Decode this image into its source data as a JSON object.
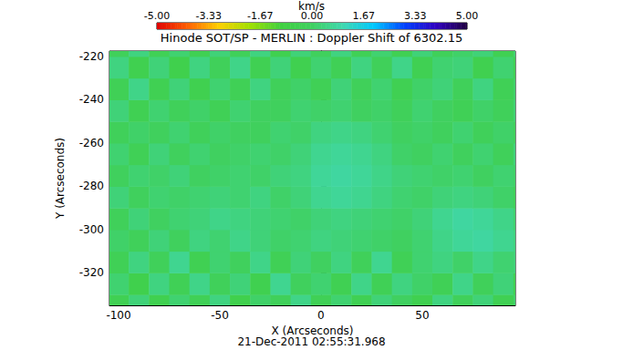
{
  "chart_data": {
    "type": "heatmap",
    "title": "Hinode SOT/SP - MERLIN : Doppler Shift of 6302.15",
    "xlabel": "X (Arcseconds)",
    "ylabel": "Y (Arcseconds)",
    "annotation": "21-Dec-2011 02:55:31.968",
    "xlim": [
      -104.5,
      96
    ],
    "ylim": [
      -335,
      -217.5
    ],
    "xticks": [
      -100,
      -50,
      0,
      50
    ],
    "yticks": [
      -320,
      -300,
      -280,
      -260,
      -240,
      -220
    ],
    "x": [
      -100,
      -90,
      -80,
      -70,
      -60,
      -50,
      -40,
      -30,
      -20,
      -10,
      0,
      10,
      20,
      30,
      40,
      50,
      60,
      70,
      80,
      90,
      100
    ],
    "y": [
      -335,
      -325,
      -315,
      -305,
      -295,
      -285,
      -275,
      -265,
      -255,
      -245,
      -235,
      -225,
      -215
    ],
    "z": [
      [
        -0.4,
        0.3,
        -0.5,
        0.2,
        -0.3,
        0.4,
        -0.6,
        0.1,
        -0.2,
        0.5,
        -0.3,
        0.2,
        -0.4,
        0.3,
        0.0,
        -0.5,
        0.4,
        -0.2,
        0.3,
        -0.4,
        0.1
      ],
      [
        0.2,
        -0.6,
        0.4,
        -0.3,
        0.5,
        -0.2,
        0.3,
        -0.5,
        0.6,
        -0.1,
        0.2,
        -0.4,
        0.5,
        -0.3,
        0.4,
        0.1,
        -0.3,
        0.5,
        -0.2,
        0.3,
        -0.4
      ],
      [
        -0.3,
        0.4,
        -0.2,
        0.6,
        -0.4,
        0.2,
        -0.1,
        0.5,
        -0.3,
        0.3,
        0.0,
        0.4,
        -0.2,
        0.6,
        -0.3,
        0.2,
        0.4,
        0.1,
        0.5,
        0.2,
        0.3
      ],
      [
        0.1,
        -0.2,
        0.3,
        -0.1,
        0.4,
        0.2,
        0.5,
        0.3,
        0.1,
        0.2,
        0.4,
        0.3,
        0.2,
        0.1,
        0.0,
        0.2,
        0.5,
        0.7,
        0.8,
        0.6,
        0.4
      ],
      [
        -0.2,
        0.3,
        0.0,
        0.2,
        0.3,
        0.5,
        0.4,
        0.3,
        0.2,
        0.1,
        0.3,
        0.4,
        0.3,
        0.2,
        0.1,
        0.3,
        0.6,
        0.8,
        0.7,
        0.5,
        0.2
      ],
      [
        0.3,
        -0.1,
        0.2,
        0.1,
        0.2,
        0.3,
        0.2,
        0.4,
        0.1,
        0.3,
        0.6,
        0.7,
        0.6,
        0.4,
        0.2,
        0.1,
        0.3,
        0.4,
        0.3,
        0.1,
        -0.2
      ],
      [
        -0.1,
        0.2,
        0.1,
        0.3,
        0.0,
        0.1,
        0.2,
        0.1,
        0.3,
        0.4,
        0.7,
        0.8,
        0.7,
        0.5,
        0.3,
        0.2,
        0.1,
        0.2,
        0.0,
        0.2,
        0.1
      ],
      [
        0.2,
        -0.3,
        0.3,
        -0.1,
        0.2,
        0.0,
        0.1,
        0.2,
        0.1,
        0.3,
        0.6,
        0.7,
        0.6,
        0.4,
        0.1,
        0.0,
        0.2,
        -0.1,
        0.2,
        -0.2,
        0.3
      ],
      [
        -0.2,
        0.1,
        -0.1,
        0.2,
        -0.2,
        0.1,
        0.0,
        -0.1,
        0.2,
        0.1,
        0.4,
        0.5,
        0.4,
        0.2,
        0.0,
        0.1,
        -0.1,
        0.2,
        -0.2,
        0.1,
        -0.1
      ],
      [
        0.3,
        -0.4,
        0.2,
        -0.2,
        0.1,
        -0.3,
        0.2,
        0.0,
        -0.1,
        0.2,
        0.1,
        0.2,
        0.0,
        0.1,
        -0.2,
        0.2,
        0.0,
        -0.3,
        0.1,
        -0.2,
        0.2
      ],
      [
        -0.3,
        0.5,
        -0.4,
        0.3,
        -0.5,
        0.2,
        -0.3,
        0.4,
        -0.2,
        0.1,
        -0.3,
        0.3,
        -0.2,
        0.2,
        -0.4,
        0.1,
        0.3,
        -0.2,
        0.4,
        -0.3,
        0.1
      ],
      [
        0.4,
        -0.5,
        0.3,
        -0.6,
        0.4,
        -0.2,
        0.5,
        -0.4,
        0.3,
        -0.5,
        0.2,
        -0.3,
        0.4,
        -0.2,
        0.5,
        -0.4,
        0.2,
        0.3,
        -0.5,
        0.2,
        -0.3
      ],
      [
        -0.2,
        0.4,
        -0.3,
        0.2,
        -0.4,
        0.3,
        -0.2,
        0.4,
        -0.5,
        0.3,
        -0.1,
        0.4,
        -0.3,
        0.2,
        -0.4,
        0.3,
        -0.2,
        0.1,
        0.3,
        -0.4,
        0.2
      ]
    ],
    "colorbar": {
      "label": "km/s",
      "range": [
        -5,
        5
      ],
      "ticks": [
        {
          "value": -5,
          "label": "-5.00"
        },
        {
          "value": -3.33,
          "label": "-3.33"
        },
        {
          "value": -1.67,
          "label": "-1.67"
        },
        {
          "value": 0,
          "label": "0.00"
        },
        {
          "value": 1.67,
          "label": "1.67"
        },
        {
          "value": 3.33,
          "label": "3.33"
        },
        {
          "value": 5,
          "label": "5.00"
        }
      ]
    }
  }
}
